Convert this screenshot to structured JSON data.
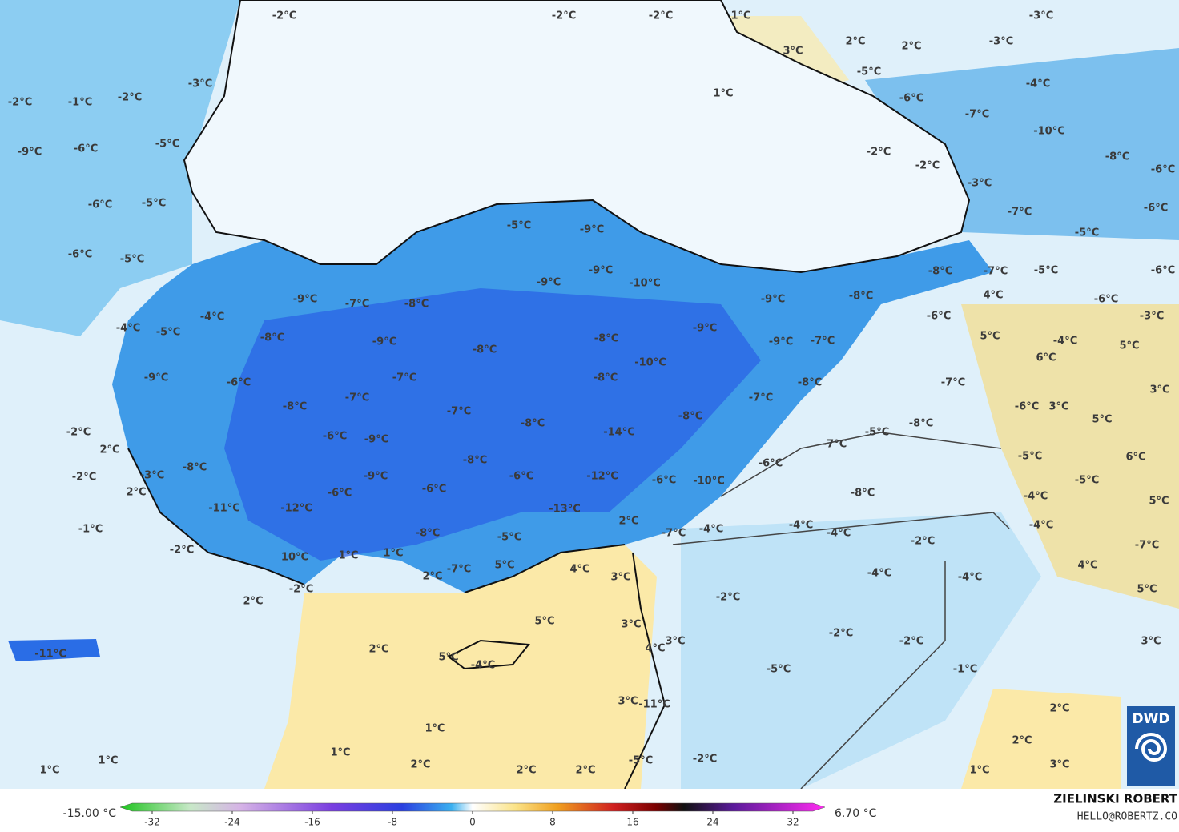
{
  "map": {
    "labels": [
      "-2°C",
      "-2°C",
      "-2°C",
      "1°C",
      "-3°C",
      "2°C",
      "-3°C",
      "2°C",
      "3°C",
      "-5°C",
      "1°C",
      "-4°C",
      "-3°C",
      "-2°C",
      "-1°C",
      "-2°C",
      "-6°C",
      "-7°C",
      "-10°C",
      "-9°C",
      "-6°C",
      "-5°C",
      "-2°C",
      "-2°C",
      "-8°C",
      "-6°C",
      "-3°C",
      "-6°C",
      "-5°C",
      "-5°C",
      "-9°C",
      "-7°C",
      "-6°C",
      "-5°C",
      "-6°C",
      "-5°C",
      "-9°C",
      "-9°C",
      "-10°C",
      "-8°C",
      "-7°C",
      "-5°C",
      "-6°C",
      "-9°C",
      "-7°C",
      "-8°C",
      "-9°C",
      "-8°C",
      "4°C",
      "-6°C",
      "-4°C",
      "-4°C",
      "-5°C",
      "-9°C",
      "-6°C",
      "-3°C",
      "-8°C",
      "-9°C",
      "-8°C",
      "-8°C",
      "-9°C",
      "-7°C",
      "5°C",
      "-4°C",
      "5°C",
      "-10°C",
      "6°C",
      "-7°C",
      "-8°C",
      "-9°C",
      "-6°C",
      "-8°C",
      "-7°C",
      "3°C",
      "-7°C",
      "-7°C",
      "-8°C",
      "-7°C",
      "-8°C",
      "-8°C",
      "-6°C",
      "3°C",
      "5°C",
      "-6°C",
      "-9°C",
      "-14°C",
      "-8°C",
      "-5°C",
      "-2°C",
      "2°C",
      "-7°C",
      "-8°C",
      "-8°C",
      "-6°C",
      "-5°C",
      "6°C",
      "-5°C",
      "-3°C",
      "-2°C",
      "-9°C",
      "-6°C",
      "-12°C",
      "-6°C",
      "-10°C",
      "2°C",
      "-6°C",
      "-6°C",
      "-8°C",
      "-4°C",
      "5°C",
      "-11°C",
      "-12°C",
      "-13°C",
      "2°C",
      "-4°C",
      "-4°C",
      "-4°C",
      "-1°C",
      "-8°C",
      "-5°C",
      "-7°C",
      "-4°C",
      "-2°C",
      "-7°C",
      "-2°C",
      "10°C",
      "1°C",
      "1°C",
      "5°C",
      "4°C",
      "3°C",
      "-4°C",
      "-4°C",
      "4°C",
      "2°C",
      "-7°C",
      "-2°C",
      "5°C",
      "2°C",
      "-2°C",
      "5°C",
      "3°C",
      "4°C",
      "3°C",
      "-2°C",
      "-2°C",
      "3°C",
      "-11°C",
      "2°C",
      "5°C",
      "-4°C",
      "-5°C",
      "-1°C",
      "3°C",
      "-11°C",
      "2°C",
      "1°C",
      "1°C",
      "2°C",
      "1°C",
      "2°C",
      "-5°C",
      "-2°C",
      "3°C",
      "1°C",
      "2°C",
      "2°C",
      "1°C"
    ]
  },
  "colorbar": {
    "min_label": "-15.00 °C",
    "max_label": "6.70 °C",
    "lim": [
      -35.2,
      35.2
    ],
    "ticks": [
      -32,
      -24,
      -16,
      -8,
      0,
      8,
      16,
      24,
      32
    ]
  },
  "credits": {
    "author": "ZIELINSKI ROBERT",
    "contact": "HELLO@ROBERTZ.CO",
    "logo": "DWD"
  }
}
